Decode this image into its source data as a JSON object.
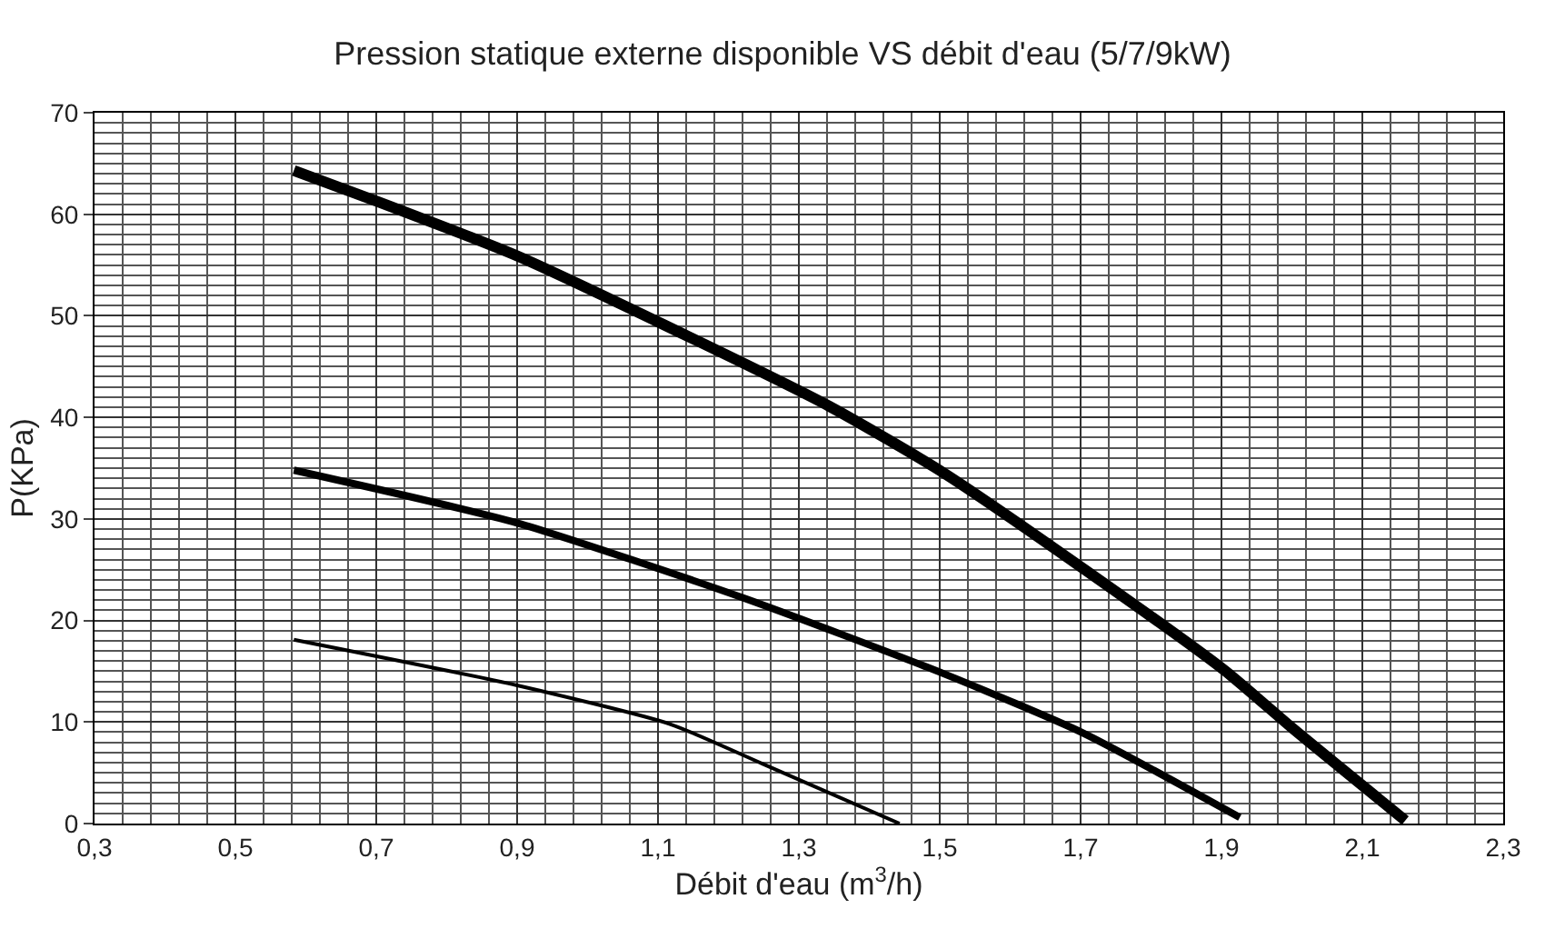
{
  "chart_data": {
    "type": "line",
    "title": "Pression statique externe disponible VS débit d'eau (5/7/9kW)",
    "xlabel": "Débit d'eau (m$^{3}$/h)",
    "ylabel": "P(KPa)",
    "series": [
      {
        "color": "#000000",
        "x": [
          0.583,
          0.704,
          0.9,
          1.109,
          1.343,
          1.504,
          1.704,
          1.904,
          2.004,
          2.161
        ],
        "values": [
          64.3,
          61.2,
          55.9,
          49.1,
          41.1,
          34.6,
          25.1,
          15.1,
          9.2,
          0.3
        ]
      },
      {
        "color": "#000000",
        "x": [
          0.583,
          0.9,
          1.222,
          1.504,
          1.704,
          1.926
        ],
        "values": [
          34.8,
          29.6,
          22.2,
          14.8,
          8.9,
          0.6
        ]
      },
      {
        "color": "#000000",
        "x": [
          0.583,
          0.9,
          1.117,
          1.248,
          1.443
        ],
        "values": [
          18.1,
          13.6,
          9.8,
          5.9,
          0
        ]
      }
    ],
    "xlim": [
      0.3,
      2.3
    ],
    "ylim": [
      0,
      70
    ],
    "xticks": [
      {
        "value": 0.3,
        "label": "0,3"
      },
      {
        "value": 0.5,
        "label": "0,5"
      },
      {
        "value": 0.7,
        "label": "0,7"
      },
      {
        "value": 0.9,
        "label": "0,9"
      },
      {
        "value": 1.1,
        "label": "1,1"
      },
      {
        "value": 1.3,
        "label": "1,3"
      },
      {
        "value": 1.5,
        "label": "1,5"
      },
      {
        "value": 1.7,
        "label": "1,7"
      },
      {
        "value": 1.9,
        "label": "1,9"
      },
      {
        "value": 2.1,
        "label": "2,1"
      },
      {
        "value": 2.3,
        "label": "2,3"
      }
    ],
    "yticks": [
      0,
      10,
      20,
      30,
      40,
      50,
      60,
      70
    ],
    "grid": true,
    "marker": "none",
    "line_style": "solid"
  }
}
